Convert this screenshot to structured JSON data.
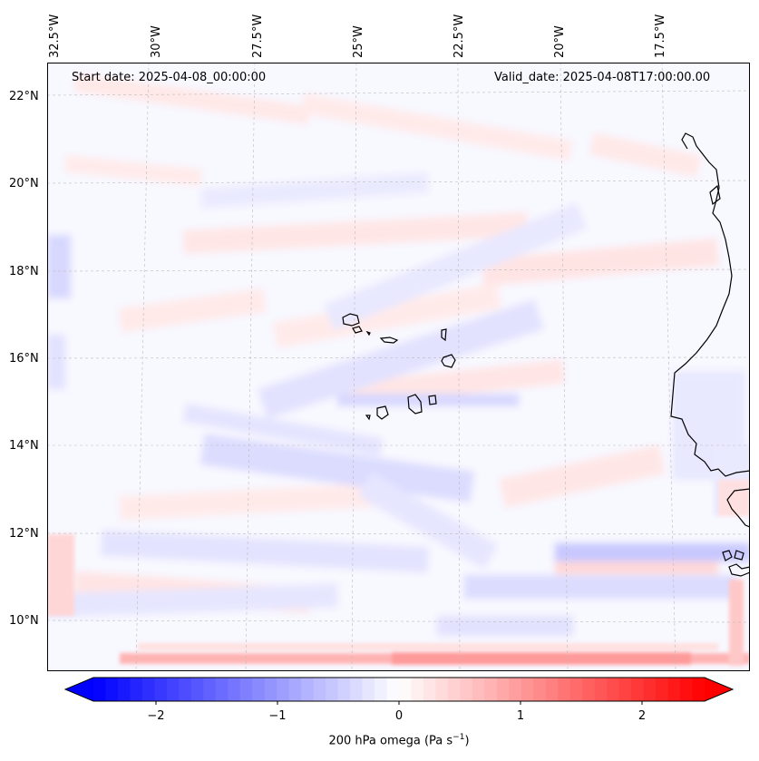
{
  "map": {
    "start_date": "Start date: 2025-04-08_00:00:00",
    "valid_date": "Valid_date: 2025-04-08T17:00:00.00",
    "lat_labels": [
      "22°N",
      "20°N",
      "18°N",
      "16°N",
      "14°N",
      "12°N",
      "10°N"
    ],
    "lon_labels": [
      "32.5°W",
      "30°W",
      "27.5°W",
      "25°W",
      "22.5°W",
      "20°W",
      "17.5°W"
    ],
    "features": [
      "omega-field",
      "coastline-africa",
      "cape-verde-islands",
      "graticule"
    ]
  },
  "colorbar": {
    "label": "200 hPa omega (Pa s",
    "label_exp": "−1",
    "label_end": ")",
    "ticks": [
      "−2",
      "−1",
      "0",
      "1",
      "2"
    ],
    "range": [
      -2.75,
      2.75
    ],
    "colors": {
      "neg": "#0000ff",
      "mid": "#ffffff",
      "pos": "#ff0000"
    }
  }
}
